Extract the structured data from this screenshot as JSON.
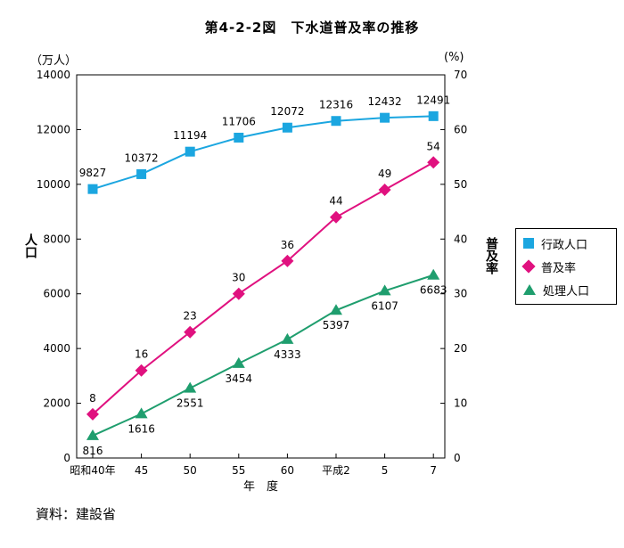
{
  "figure": {
    "title": "第4-2-2図　下水道普及率の推移",
    "left_unit": "（万人）",
    "right_unit": "(%)",
    "left_axis_label": "人口",
    "right_axis_label": "普及率",
    "source": "資料：建設省",
    "colors": {
      "admin": "#1ba6e0",
      "rate": "#e0117f",
      "served": "#1f9e6e"
    }
  },
  "chart_data": {
    "type": "line",
    "categories": [
      "昭和40年",
      "45",
      "50",
      "55",
      "60",
      "平成2",
      "5",
      "7"
    ],
    "xlabel": "年　度",
    "ylabel_left": "人口",
    "ylabel_right": "普及率",
    "ylim_left": [
      0,
      14000
    ],
    "yticks_left": [
      0,
      2000,
      4000,
      6000,
      8000,
      10000,
      12000,
      14000
    ],
    "ylim_right": [
      0,
      70
    ],
    "yticks_right": [
      0,
      10,
      20,
      30,
      40,
      50,
      60,
      70
    ],
    "legend_position": "right",
    "grid": false,
    "series": [
      {
        "name": "行政人口",
        "axis": "left",
        "marker": "square",
        "label_pos": "above",
        "values": [
          9827,
          10372,
          11194,
          11706,
          12072,
          12316,
          12432,
          12491
        ]
      },
      {
        "name": "普及率",
        "axis": "right",
        "marker": "diamond",
        "label_pos": "above",
        "values": [
          8,
          16,
          23,
          30,
          36,
          44,
          49,
          54
        ]
      },
      {
        "name": "処理人口",
        "axis": "left",
        "marker": "triangle",
        "label_pos": "below",
        "values": [
          816,
          1616,
          2551,
          3454,
          4333,
          5397,
          6107,
          6683
        ]
      }
    ]
  }
}
